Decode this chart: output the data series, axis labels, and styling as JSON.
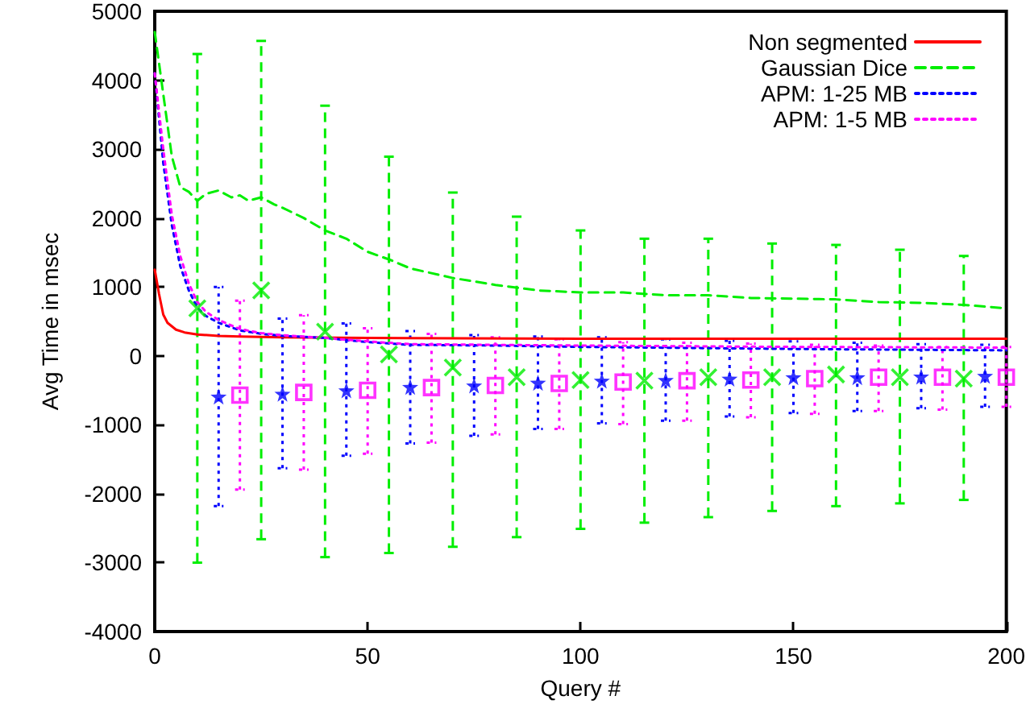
{
  "chart_data": {
    "type": "line",
    "xlabel": "Query #",
    "ylabel": "Avg Time in msec",
    "xlim": [
      0,
      200
    ],
    "xticks": [
      0,
      50,
      100,
      150,
      200
    ],
    "ylim": [
      -4000,
      5000
    ],
    "yticks": [
      -4000,
      -3000,
      -2000,
      -1000,
      0,
      1000,
      2000,
      3000,
      4000,
      5000
    ],
    "grid": false,
    "legend": "top right",
    "marker": "none",
    "series": [
      {
        "name": "Non segmented",
        "color": "#ff0000",
        "line_style": "solid",
        "x": [
          0,
          1,
          2,
          3,
          5,
          7,
          10,
          15,
          20,
          30,
          50,
          100,
          150,
          200
        ],
        "values": [
          1250,
          900,
          600,
          480,
          380,
          340,
          310,
          290,
          280,
          270,
          260,
          250,
          250,
          250
        ]
      },
      {
        "name": "Gaussian Dice",
        "color": "#00ee00",
        "line_style": "dashed",
        "x": [
          0,
          2,
          4,
          6,
          8,
          10,
          12,
          15,
          18,
          20,
          22,
          25,
          28,
          30,
          35,
          40,
          45,
          50,
          55,
          60,
          70,
          80,
          90,
          100,
          110,
          120,
          130,
          140,
          150,
          160,
          170,
          180,
          190,
          200
        ],
        "values": [
          4700,
          3800,
          2900,
          2450,
          2380,
          2250,
          2350,
          2400,
          2300,
          2330,
          2250,
          2300,
          2200,
          2150,
          2000,
          1820,
          1700,
          1510,
          1400,
          1270,
          1130,
          1030,
          950,
          920,
          920,
          880,
          880,
          840,
          830,
          820,
          780,
          770,
          740,
          690
        ]
      },
      {
        "name": "APM: 1-25 MB",
        "color": "#0000ff",
        "line_style": "dotted",
        "x": [
          0,
          2,
          4,
          6,
          8,
          10,
          12,
          15,
          20,
          25,
          30,
          40,
          50,
          60,
          80,
          100,
          150,
          200
        ],
        "values": [
          4100,
          2800,
          1900,
          1300,
          950,
          700,
          580,
          480,
          370,
          320,
          290,
          260,
          200,
          160,
          150,
          130,
          100,
          80
        ]
      },
      {
        "name": "APM: 1-5 MB",
        "color": "#ff00ff",
        "line_style": "dotted",
        "x": [
          0,
          2,
          4,
          6,
          8,
          10,
          12,
          15,
          20,
          25,
          30,
          40,
          50,
          60,
          80,
          100,
          150,
          200
        ],
        "values": [
          4100,
          3000,
          2050,
          1450,
          1050,
          780,
          640,
          520,
          390,
          330,
          300,
          260,
          210,
          170,
          160,
          150,
          130,
          120
        ]
      },
      {
        "type": "scatter",
        "color": "#00ee00",
        "marker": "cross",
        "line_style": "dashed",
        "x": [
          10,
          25,
          40,
          55,
          70,
          85,
          100,
          115,
          130,
          145,
          160,
          175,
          190
        ],
        "values": [
          690,
          950,
          350,
          20,
          -170,
          -310,
          -350,
          -360,
          -310,
          -310,
          -270,
          -310,
          -330
        ],
        "errors": [
          [
            -3000,
            4380
          ],
          [
            -2660,
            4570
          ],
          [
            -2920,
            3630
          ],
          [
            -2860,
            2890
          ],
          [
            -2770,
            2370
          ],
          [
            -2630,
            2020
          ],
          [
            -2510,
            1820
          ],
          [
            -2420,
            1700
          ],
          [
            -2340,
            1700
          ],
          [
            -2250,
            1630
          ],
          [
            -2180,
            1610
          ],
          [
            -2140,
            1540
          ],
          [
            -2090,
            1450
          ]
        ]
      },
      {
        "type": "scatter",
        "color": "#0000ff",
        "marker": "star",
        "line_style": "dotted",
        "x": [
          15,
          30,
          45,
          60,
          75,
          90,
          105,
          120,
          135,
          150,
          165,
          180,
          195
        ],
        "values": [
          -590,
          -550,
          -500,
          -450,
          -430,
          -390,
          -360,
          -350,
          -330,
          -310,
          -310,
          -300,
          -290
        ],
        "errors": [
          [
            -2180,
            1000
          ],
          [
            -1630,
            540
          ],
          [
            -1450,
            470
          ],
          [
            -1270,
            360
          ],
          [
            -1160,
            300
          ],
          [
            -1060,
            280
          ],
          [
            -980,
            270
          ],
          [
            -940,
            240
          ],
          [
            -880,
            220
          ],
          [
            -830,
            210
          ],
          [
            -800,
            190
          ],
          [
            -760,
            170
          ],
          [
            -740,
            160
          ]
        ]
      },
      {
        "type": "scatter",
        "color": "#ff00ff",
        "marker": "square",
        "line_style": "dotted",
        "x": [
          20,
          35,
          50,
          65,
          80,
          95,
          110,
          125,
          140,
          155,
          170,
          185,
          200
        ],
        "values": [
          -570,
          -530,
          -500,
          -460,
          -430,
          -400,
          -380,
          -360,
          -350,
          -330,
          -310,
          -310,
          -310
        ],
        "errors": [
          [
            -1940,
            800
          ],
          [
            -1650,
            590
          ],
          [
            -1420,
            400
          ],
          [
            -1260,
            320
          ],
          [
            -1140,
            270
          ],
          [
            -1060,
            240
          ],
          [
            -990,
            200
          ],
          [
            -940,
            190
          ],
          [
            -890,
            180
          ],
          [
            -840,
            160
          ],
          [
            -800,
            150
          ],
          [
            -780,
            130
          ],
          [
            -740,
            130
          ]
        ]
      }
    ]
  }
}
